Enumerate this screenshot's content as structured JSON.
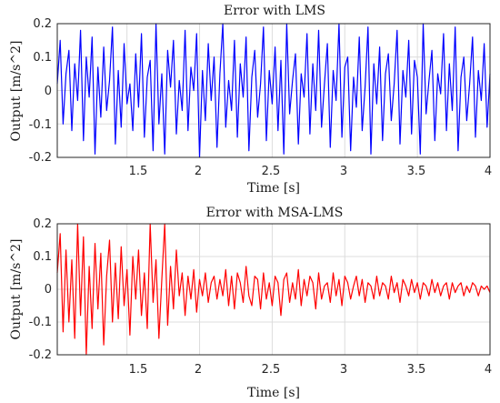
{
  "chart_data": [
    {
      "type": "line",
      "title": "Error with LMS",
      "xlabel": "Time [s]",
      "ylabel": "Output [m/s^2]",
      "xlim": [
        1.02,
        4.0
      ],
      "ylim": [
        -0.2,
        0.2
      ],
      "xticks": [
        "1.5",
        "2",
        "2.5",
        "3",
        "3.5",
        "4"
      ],
      "yticks": [
        "0.2",
        "0.1",
        "0",
        "-0.1",
        "-0.2"
      ],
      "grid": true,
      "series": [
        {
          "color": "#0000ff",
          "x": [
            1.02,
            1.04,
            1.06,
            1.08,
            1.1,
            1.12,
            1.14,
            1.16,
            1.18,
            1.2,
            1.22,
            1.24,
            1.26,
            1.28,
            1.3,
            1.32,
            1.34,
            1.36,
            1.38,
            1.4,
            1.42,
            1.44,
            1.46,
            1.48,
            1.5,
            1.52,
            1.54,
            1.56,
            1.58,
            1.6,
            1.62,
            1.64,
            1.66,
            1.68,
            1.7,
            1.72,
            1.74,
            1.76,
            1.78,
            1.8,
            1.82,
            1.84,
            1.86,
            1.88,
            1.9,
            1.92,
            1.94,
            1.96,
            1.98,
            2.0,
            2.02,
            2.04,
            2.06,
            2.08,
            2.1,
            2.12,
            2.14,
            2.16,
            2.18,
            2.2,
            2.22,
            2.24,
            2.26,
            2.28,
            2.3,
            2.32,
            2.34,
            2.36,
            2.38,
            2.4,
            2.42,
            2.44,
            2.46,
            2.48,
            2.5,
            2.52,
            2.54,
            2.56,
            2.58,
            2.6,
            2.62,
            2.64,
            2.66,
            2.68,
            2.7,
            2.72,
            2.74,
            2.76,
            2.78,
            2.8,
            2.82,
            2.84,
            2.86,
            2.88,
            2.9,
            2.92,
            2.94,
            2.96,
            2.98,
            3.0,
            3.02,
            3.04,
            3.06,
            3.08,
            3.1,
            3.12,
            3.14,
            3.16,
            3.18,
            3.2,
            3.22,
            3.24,
            3.26,
            3.28,
            3.3,
            3.32,
            3.34,
            3.36,
            3.38,
            3.4,
            3.42,
            3.44,
            3.46,
            3.48,
            3.5,
            3.52,
            3.54,
            3.56,
            3.58,
            3.6,
            3.62,
            3.64,
            3.66,
            3.68,
            3.7,
            3.72,
            3.74,
            3.76,
            3.78,
            3.8,
            3.82,
            3.84,
            3.86,
            3.88,
            3.9,
            3.92,
            3.94,
            3.96,
            3.98,
            4.0
          ],
          "y": [
            0.02,
            0.15,
            -0.1,
            0.05,
            0.12,
            -0.12,
            0.08,
            -0.03,
            0.18,
            -0.15,
            0.1,
            -0.02,
            0.16,
            -0.19,
            0.07,
            -0.08,
            0.13,
            -0.06,
            0.03,
            0.19,
            -0.16,
            0.06,
            -0.11,
            0.14,
            -0.04,
            0.02,
            -0.12,
            0.11,
            -0.05,
            0.17,
            -0.14,
            0.04,
            0.09,
            -0.18,
            0.2,
            -0.1,
            0.05,
            -0.19,
            0.12,
            0.01,
            0.15,
            -0.13,
            0.03,
            -0.06,
            0.18,
            -0.12,
            0.07,
            0.0,
            0.17,
            -0.2,
            0.06,
            -0.09,
            0.14,
            -0.03,
            0.1,
            -0.17,
            0.05,
            0.2,
            -0.11,
            0.03,
            -0.06,
            0.15,
            -0.14,
            0.08,
            -0.02,
            0.16,
            -0.18,
            0.04,
            0.12,
            -0.08,
            0.02,
            0.19,
            -0.15,
            0.06,
            -0.04,
            0.13,
            -0.12,
            0.09,
            -0.19,
            0.2,
            -0.07,
            0.03,
            0.11,
            -0.16,
            0.05,
            -0.02,
            0.17,
            -0.13,
            0.08,
            -0.06,
            0.18,
            -0.11,
            0.02,
            0.14,
            -0.17,
            0.06,
            -0.03,
            0.2,
            -0.14,
            0.07,
            0.1,
            -0.18,
            0.04,
            -0.05,
            0.16,
            -0.12,
            0.01,
            0.19,
            -0.19,
            0.08,
            -0.04,
            0.13,
            -0.15,
            0.05,
            0.11,
            -0.09,
            0.02,
            0.18,
            -0.16,
            0.06,
            -0.02,
            0.15,
            -0.13,
            0.09,
            0.04,
            -0.19,
            0.2,
            -0.07,
            0.03,
            0.12,
            -0.15,
            0.05,
            -0.01,
            0.17,
            -0.12,
            0.08,
            -0.06,
            0.19,
            -0.18,
            0.04,
            0.1,
            -0.09,
            0.02,
            0.16,
            -0.14,
            0.06,
            -0.03,
            0.14,
            -0.11,
            0.05
          ]
        }
      ]
    },
    {
      "type": "line",
      "title": "Error with MSA-LMS",
      "xlabel": "Time [s]",
      "ylabel": "Output [m/s^2]",
      "xlim": [
        1.02,
        4.0
      ],
      "ylim": [
        -0.2,
        0.2
      ],
      "xticks": [
        "1.5",
        "2",
        "2.5",
        "3",
        "3.5",
        "4"
      ],
      "yticks": [
        "0.2",
        "0.1",
        "0",
        "-0.1",
        "-0.2"
      ],
      "grid": true,
      "series": [
        {
          "color": "#ff0000",
          "x": [
            1.02,
            1.04,
            1.06,
            1.08,
            1.1,
            1.12,
            1.14,
            1.16,
            1.18,
            1.2,
            1.22,
            1.24,
            1.26,
            1.28,
            1.3,
            1.32,
            1.34,
            1.36,
            1.38,
            1.4,
            1.42,
            1.44,
            1.46,
            1.48,
            1.5,
            1.52,
            1.54,
            1.56,
            1.58,
            1.6,
            1.62,
            1.64,
            1.66,
            1.68,
            1.7,
            1.72,
            1.74,
            1.76,
            1.78,
            1.8,
            1.82,
            1.84,
            1.86,
            1.88,
            1.9,
            1.92,
            1.94,
            1.96,
            1.98,
            2.0,
            2.02,
            2.04,
            2.06,
            2.08,
            2.1,
            2.12,
            2.14,
            2.16,
            2.18,
            2.2,
            2.22,
            2.24,
            2.26,
            2.28,
            2.3,
            2.32,
            2.34,
            2.36,
            2.38,
            2.4,
            2.42,
            2.44,
            2.46,
            2.48,
            2.5,
            2.52,
            2.54,
            2.56,
            2.58,
            2.6,
            2.62,
            2.64,
            2.66,
            2.68,
            2.7,
            2.72,
            2.74,
            2.76,
            2.78,
            2.8,
            2.82,
            2.84,
            2.86,
            2.88,
            2.9,
            2.92,
            2.94,
            2.96,
            2.98,
            3.0,
            3.02,
            3.04,
            3.06,
            3.08,
            3.1,
            3.12,
            3.14,
            3.16,
            3.18,
            3.2,
            3.22,
            3.24,
            3.26,
            3.28,
            3.3,
            3.32,
            3.34,
            3.36,
            3.38,
            3.4,
            3.42,
            3.44,
            3.46,
            3.48,
            3.5,
            3.52,
            3.54,
            3.56,
            3.58,
            3.6,
            3.62,
            3.64,
            3.66,
            3.68,
            3.7,
            3.72,
            3.74,
            3.76,
            3.78,
            3.8,
            3.82,
            3.84,
            3.86,
            3.88,
            3.9,
            3.92,
            3.94,
            3.96,
            3.98,
            4.0
          ],
          "y": [
            0.05,
            0.17,
            -0.13,
            0.12,
            -0.1,
            0.09,
            -0.15,
            0.2,
            -0.08,
            0.16,
            -0.2,
            0.07,
            -0.12,
            0.14,
            -0.06,
            0.11,
            -0.17,
            0.04,
            0.15,
            -0.1,
            0.08,
            -0.09,
            0.13,
            -0.05,
            0.06,
            -0.14,
            0.1,
            -0.03,
            0.12,
            -0.08,
            0.05,
            -0.12,
            0.2,
            -0.04,
            0.09,
            -0.15,
            0.03,
            0.2,
            -0.11,
            0.07,
            -0.06,
            0.12,
            -0.02,
            0.05,
            -0.08,
            0.04,
            -0.03,
            0.06,
            -0.07,
            0.03,
            -0.02,
            0.05,
            -0.04,
            0.02,
            0.04,
            -0.03,
            0.03,
            -0.02,
            0.06,
            -0.05,
            0.04,
            -0.06,
            0.05,
            0.02,
            -0.04,
            0.07,
            -0.02,
            -0.05,
            0.04,
            0.03,
            -0.06,
            0.05,
            -0.03,
            0.02,
            -0.05,
            0.04,
            0.02,
            -0.08,
            0.03,
            0.05,
            -0.04,
            0.02,
            -0.03,
            0.06,
            -0.05,
            0.03,
            -0.02,
            0.04,
            0.02,
            -0.06,
            0.05,
            -0.03,
            0.01,
            0.02,
            -0.04,
            0.05,
            -0.02,
            0.03,
            -0.05,
            0.04,
            0.02,
            -0.03,
            0.01,
            0.04,
            -0.02,
            0.03,
            -0.04,
            0.02,
            0.01,
            -0.03,
            0.04,
            -0.02,
            0.02,
            0.01,
            -0.03,
            0.04,
            -0.01,
            0.02,
            -0.04,
            0.03,
            0.01,
            -0.02,
            0.03,
            -0.01,
            0.02,
            -0.03,
            0.02,
            0.01,
            -0.02,
            0.03,
            -0.01,
            0.02,
            -0.02,
            0.01,
            0.02,
            -0.03,
            0.02,
            -0.01,
            0.01,
            0.02,
            -0.02,
            0.01,
            -0.01,
            0.02,
            0.01,
            -0.02,
            0.01,
            0.0,
            0.01,
            -0.01
          ]
        }
      ]
    }
  ]
}
